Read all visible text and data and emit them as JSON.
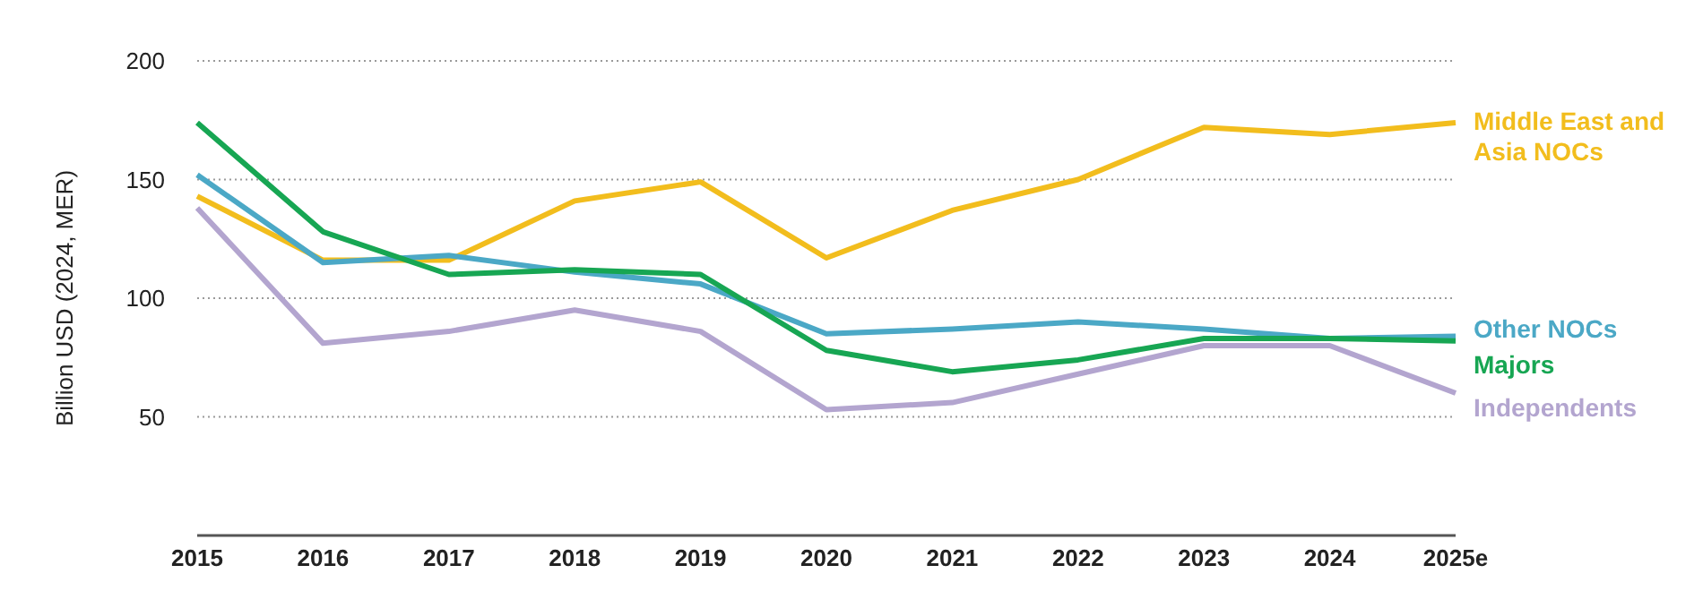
{
  "chart_data": {
    "type": "line",
    "ylabel": "Billion USD (2024, MER)",
    "categories": [
      "2015",
      "2016",
      "2017",
      "2018",
      "2019",
      "2020",
      "2021",
      "2022",
      "2023",
      "2024",
      "2025e"
    ],
    "series": [
      {
        "name": "Middle East and Asia NOCs",
        "color": "#f2bd1d",
        "values": [
          143,
          116,
          116,
          141,
          149,
          117,
          137,
          150,
          172,
          169,
          174
        ]
      },
      {
        "name": "Other NOCs",
        "color": "#4ba8c6",
        "values": [
          152,
          115,
          118,
          111,
          106,
          85,
          87,
          90,
          87,
          83,
          84
        ]
      },
      {
        "name": "Majors",
        "color": "#17a653",
        "values": [
          174,
          128,
          110,
          112,
          110,
          78,
          69,
          74,
          83,
          83,
          82
        ]
      },
      {
        "name": "Independents",
        "color": "#b3a5cf",
        "values": [
          138,
          81,
          86,
          95,
          86,
          53,
          56,
          68,
          80,
          80,
          60
        ]
      }
    ],
    "ylim": [
      0,
      200
    ],
    "yticks": [
      50,
      100,
      150,
      200
    ],
    "grid": "y",
    "legend": false,
    "marker": "none",
    "line_style": "solid"
  }
}
